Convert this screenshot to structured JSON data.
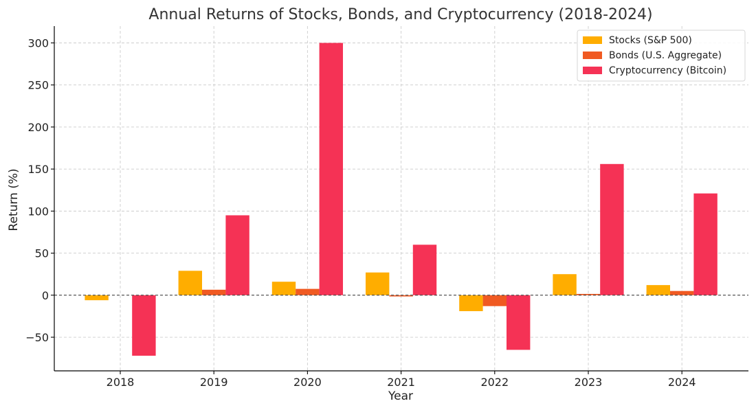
{
  "chart_data": {
    "type": "bar",
    "title": "Annual Returns of Stocks, Bonds, and Cryptocurrency (2018-2024)",
    "xlabel": "Year",
    "ylabel": "Return (%)",
    "categories": [
      "2018",
      "2019",
      "2020",
      "2021",
      "2022",
      "2023",
      "2024"
    ],
    "ylim": [
      -90,
      320
    ],
    "yticks": [
      -50,
      0,
      50,
      100,
      150,
      200,
      250,
      300
    ],
    "ytick_labels": [
      "−50",
      "0",
      "50",
      "100",
      "150",
      "200",
      "250",
      "300"
    ],
    "grid": true,
    "zero_line": true,
    "legend_position": "top-right",
    "series": [
      {
        "name": "Stocks (S&P 500)",
        "color": "#ffad00",
        "values": [
          -6,
          29,
          16,
          27,
          -19,
          25,
          12
        ]
      },
      {
        "name": "Bonds (U.S. Aggregate)",
        "color": "#f05a22",
        "values": [
          0,
          6.5,
          7.5,
          -1.5,
          -13,
          1.5,
          5
        ]
      },
      {
        "name": "Cryptocurrency (Bitcoin)",
        "color": "#f53255",
        "values": [
          -72,
          95,
          300,
          60,
          -65,
          156,
          121
        ]
      }
    ]
  }
}
